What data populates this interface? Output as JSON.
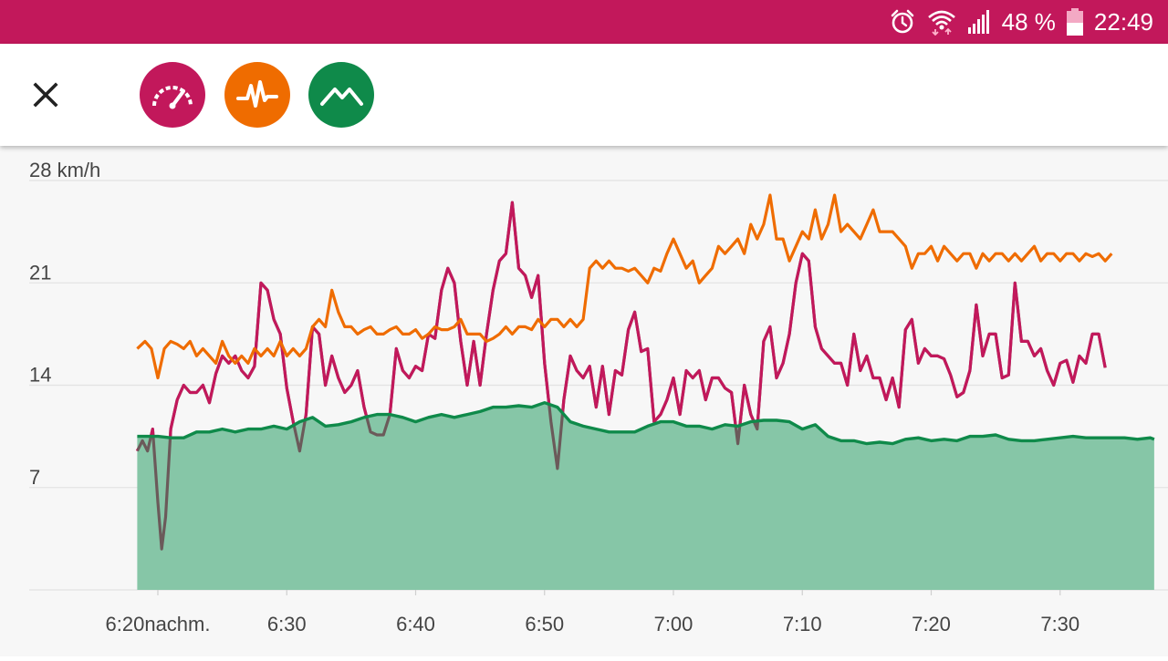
{
  "colors": {
    "status_bar": "#c2185b",
    "speed": "#c2185b",
    "heart_rate": "#ef6c00",
    "elevation": "#0f8a4a",
    "elevation_fill": "#86c6a7",
    "speed_low": "#6b5a5a"
  },
  "status_bar": {
    "battery_percent": "48 %",
    "time": "22:49",
    "icons": [
      "alarm-icon",
      "wifi-icon",
      "signal-icon",
      "battery-icon"
    ]
  },
  "toolbar": {
    "close_icon": "close-icon",
    "buttons": [
      {
        "icon": "speedometer-icon",
        "metric": "speed"
      },
      {
        "icon": "heartbeat-icon",
        "metric": "heart_rate"
      },
      {
        "icon": "mountain-icon",
        "metric": "elevation"
      }
    ]
  },
  "chart_data": {
    "type": "line",
    "grid": true,
    "y_tick_labels": [
      "28 km/h",
      "21",
      "14",
      "7"
    ],
    "y_ticks": [
      28,
      21,
      14,
      7
    ],
    "ylim": [
      0,
      28
    ],
    "x_tick_labels": [
      "6:20nachm.",
      "6:30",
      "6:40",
      "6:50",
      "7:00",
      "7:10",
      "7:20",
      "7:30"
    ],
    "x_ticks_min": [
      0,
      10,
      20,
      30,
      40,
      50,
      60,
      70
    ],
    "xlim_min": [
      -1.6,
      77.3
    ],
    "series": [
      {
        "key": "speed",
        "unit": "km/h",
        "x_min": [
          -1.6,
          -1.2,
          -0.8,
          -0.4,
          0,
          0.3,
          0.6,
          1,
          1.5,
          2,
          2.5,
          3,
          3.5,
          4,
          4.5,
          5,
          5.5,
          6,
          6.5,
          7,
          7.5,
          8,
          8.5,
          9,
          9.5,
          10,
          10.5,
          11,
          11.5,
          12,
          12.5,
          13,
          13.5,
          14,
          14.5,
          15,
          15.5,
          16,
          16.5,
          17,
          17.5,
          18,
          18.5,
          19,
          19.5,
          20,
          20.5,
          21,
          21.5,
          22,
          22.5,
          23,
          23.5,
          24,
          24.5,
          25,
          25.5,
          26,
          26.5,
          27,
          27.5,
          28,
          28.5,
          29,
          29.5,
          30,
          30.5,
          31,
          31.5,
          32,
          32.5,
          33,
          33.5,
          34,
          34.5,
          35,
          35.5,
          36,
          36.5,
          37,
          37.5,
          38,
          38.5,
          39,
          39.5,
          40,
          40.5,
          41,
          41.5,
          42,
          42.5,
          43,
          43.5,
          44,
          44.5,
          45,
          45.5,
          46,
          46.5,
          47,
          47.5,
          48,
          48.5,
          49,
          49.5,
          50,
          50.5,
          51,
          51.5,
          52,
          52.5,
          53,
          53.5,
          54,
          54.5,
          55,
          55.5,
          56,
          56.5,
          57,
          57.5,
          58,
          58.5,
          59,
          59.5,
          60,
          60.5,
          61,
          61.5,
          62,
          62.5,
          63,
          63.5,
          64,
          64.5,
          65,
          65.5,
          66,
          66.5,
          67,
          67.5,
          68,
          68.5,
          69,
          69.5,
          70,
          70.5,
          71,
          71.5,
          72,
          72.5,
          73,
          73.5,
          74,
          74.5,
          75,
          75.5,
          76,
          76.5,
          77,
          77.3
        ],
        "values": [
          9.5,
          10.2,
          9.5,
          11,
          6,
          2.8,
          5,
          11,
          13,
          14,
          13.5,
          13.5,
          14,
          12.8,
          14.8,
          16,
          15.5,
          16,
          15,
          14.5,
          15.3,
          21,
          20.5,
          18.5,
          17.5,
          13.8,
          11.5,
          9.5,
          12,
          18,
          17.5,
          14,
          16,
          14.5,
          13.5,
          14,
          15,
          12.5,
          10.8,
          10.6,
          10.6,
          12,
          16.5,
          15,
          14.5,
          15.3,
          15,
          17.5,
          17.2,
          20.5,
          22,
          21,
          17,
          14,
          17,
          14,
          17.5,
          20.5,
          22.5,
          23,
          26.5,
          22,
          21.5,
          20,
          21.5,
          15.5,
          11.5,
          8.3,
          13,
          16,
          15,
          14.5,
          15.3,
          12.5,
          15.3,
          12,
          15,
          14.7,
          17.8,
          19,
          16.3,
          16.5,
          11.5,
          12,
          13,
          14.5,
          12,
          15,
          14.5,
          15,
          13,
          14.5,
          14.5,
          13.8,
          13.5,
          10,
          14,
          12,
          11,
          17,
          18,
          14.5,
          15.5,
          17.5,
          21,
          23,
          22.5,
          18,
          16.5,
          16,
          15.5,
          15.5,
          14,
          17.5,
          15,
          16,
          14.5,
          14.5,
          13,
          14.5,
          12.5,
          17.8,
          18.5,
          15.5,
          16.5,
          16,
          16,
          15.8,
          14.7,
          13.2,
          13.5,
          15,
          19.5,
          16,
          17.5,
          17.5,
          14.5,
          14.7,
          21,
          17,
          17,
          16,
          16.5,
          15,
          14,
          15.5,
          15.7,
          14.2,
          16,
          15.5,
          17.5,
          17.5,
          15.2
        ]
      },
      {
        "key": "heart_rate",
        "x_min": [
          -1.6,
          -1,
          -0.5,
          0,
          0.5,
          1,
          1.5,
          2,
          2.5,
          3,
          3.5,
          4,
          4.5,
          5,
          5.5,
          6,
          6.5,
          7,
          7.5,
          8,
          8.5,
          9,
          9.5,
          10,
          10.5,
          11,
          11.5,
          12,
          12.5,
          13,
          13.5,
          14,
          14.5,
          15,
          15.5,
          16,
          16.5,
          17,
          17.5,
          18,
          18.5,
          19,
          19.5,
          20,
          20.5,
          21,
          21.5,
          22,
          22.5,
          23,
          23.5,
          24,
          24.5,
          25,
          25.5,
          26,
          26.5,
          27,
          27.5,
          28,
          28.5,
          29,
          29.5,
          30,
          30.5,
          31,
          31.5,
          32,
          32.5,
          33,
          33.5,
          34,
          34.5,
          35,
          35.5,
          36,
          36.5,
          37,
          37.5,
          38,
          38.5,
          39,
          39.5,
          40,
          40.5,
          41,
          41.5,
          42,
          42.5,
          43,
          43.5,
          44,
          44.5,
          45,
          45.5,
          46,
          46.5,
          47,
          47.5,
          48,
          48.5,
          49,
          49.5,
          50,
          50.5,
          51,
          51.5,
          52,
          52.5,
          53,
          53.5,
          54,
          54.5,
          55,
          55.5,
          56,
          56.5,
          57,
          57.5,
          58,
          58.5,
          59,
          59.5,
          60,
          60.5,
          61,
          61.5,
          62,
          62.5,
          63,
          63.5,
          64,
          64.5,
          65,
          65.5,
          66,
          66.5,
          67,
          67.5,
          68,
          68.5,
          69,
          69.5,
          70,
          70.5,
          71,
          71.5,
          72,
          72.5,
          73,
          73.5,
          74,
          74.5,
          75,
          75.5,
          76,
          76.5,
          77,
          77.3
        ],
        "values": [
          16.5,
          17,
          16.5,
          14.5,
          16.5,
          17,
          16.8,
          16.5,
          17,
          16,
          16.5,
          16,
          15.5,
          17,
          16,
          15.5,
          16,
          15.5,
          16.5,
          16,
          16.5,
          16,
          17,
          16,
          16.5,
          16,
          16.5,
          18,
          18.5,
          18,
          20.5,
          19,
          18,
          18,
          17.5,
          17.8,
          18,
          17.5,
          17.5,
          17.8,
          18,
          17.5,
          17.5,
          17.8,
          17.2,
          17.5,
          18,
          17.8,
          17.8,
          18,
          18.5,
          17.5,
          17.5,
          17.5,
          17,
          17.2,
          17.5,
          18,
          17.5,
          18,
          18,
          17.8,
          18.5,
          18,
          18.5,
          18.5,
          18,
          18.5,
          18,
          18.5,
          22,
          22.5,
          22,
          22.5,
          22,
          22,
          21.8,
          22,
          21.5,
          21,
          22,
          21.8,
          23,
          24,
          23,
          22,
          22.5,
          21,
          21.5,
          22,
          23.5,
          23,
          23.5,
          24,
          23,
          25,
          24,
          25,
          27,
          24,
          24,
          22.5,
          23.5,
          24.5,
          24,
          26,
          24,
          25,
          27,
          24.5,
          25,
          24.5,
          24,
          25,
          26,
          24.5,
          24.5,
          24.5,
          24,
          23.5,
          22,
          23,
          23,
          23.5,
          22.5,
          23.5,
          23,
          22.5,
          23,
          23,
          22,
          23,
          22.5,
          23,
          23,
          22.5,
          23,
          22.5,
          23,
          23.5,
          22.5,
          23,
          23,
          22.5,
          23,
          23,
          22.5,
          23,
          22.8,
          23,
          22.5,
          23
        ]
      },
      {
        "key": "elevation",
        "x_min": [
          -1.6,
          -1,
          0,
          1,
          2,
          3,
          4,
          5,
          6,
          7,
          8,
          9,
          10,
          11,
          12,
          13,
          14,
          15,
          16,
          17,
          18,
          19,
          20,
          21,
          22,
          23,
          24,
          25,
          26,
          27,
          28,
          29,
          30,
          31,
          32,
          33,
          34,
          35,
          36,
          37,
          38,
          39,
          40,
          41,
          42,
          43,
          44,
          45,
          46,
          47,
          48,
          49,
          50,
          51,
          52,
          53,
          54,
          55,
          56,
          57,
          58,
          59,
          60,
          61,
          62,
          63,
          64,
          65,
          66,
          67,
          68,
          69,
          70,
          71,
          72,
          73,
          74,
          75,
          76,
          77,
          77.3
        ],
        "values": [
          10.5,
          10.5,
          10.5,
          10.4,
          10.4,
          10.8,
          10.8,
          11,
          10.8,
          11,
          11,
          11.2,
          11,
          11.5,
          11.8,
          11.2,
          11.3,
          11.5,
          11.8,
          12,
          12,
          11.8,
          11.5,
          11.8,
          12,
          11.8,
          12,
          12.2,
          12.5,
          12.5,
          12.6,
          12.5,
          12.8,
          12.5,
          11.5,
          11.2,
          11,
          10.8,
          10.8,
          10.8,
          11.2,
          11.5,
          11.5,
          11.2,
          11.2,
          11,
          11.3,
          11.2,
          11.5,
          11.6,
          11.6,
          11.5,
          11,
          11.3,
          10.5,
          10.2,
          10.2,
          10,
          10.1,
          10,
          10.3,
          10.4,
          10.2,
          10.3,
          10.2,
          10.5,
          10.5,
          10.6,
          10.3,
          10.2,
          10.2,
          10.3,
          10.4,
          10.5,
          10.4,
          10.4,
          10.4,
          10.4,
          10.3,
          10.4,
          10.3
        ]
      }
    ]
  }
}
